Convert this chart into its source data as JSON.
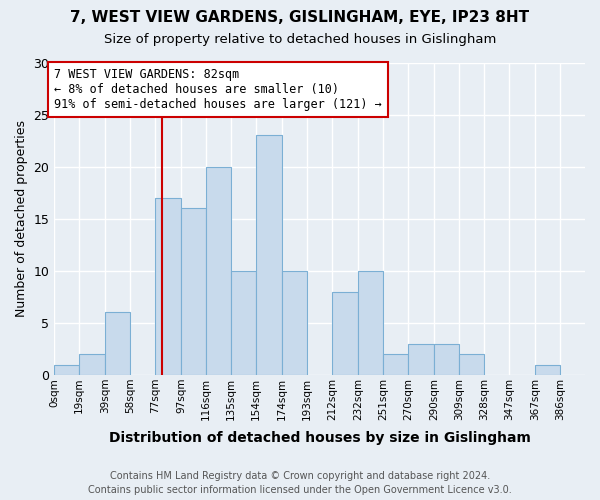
{
  "title": "7, WEST VIEW GARDENS, GISLINGHAM, EYE, IP23 8HT",
  "subtitle": "Size of property relative to detached houses in Gislingham",
  "xlabel": "Distribution of detached houses by size in Gislingham",
  "ylabel": "Number of detached properties",
  "bin_labels": [
    "0sqm",
    "19sqm",
    "39sqm",
    "58sqm",
    "77sqm",
    "97sqm",
    "116sqm",
    "135sqm",
    "154sqm",
    "174sqm",
    "193sqm",
    "212sqm",
    "232sqm",
    "251sqm",
    "270sqm",
    "290sqm",
    "309sqm",
    "328sqm",
    "347sqm",
    "367sqm",
    "386sqm"
  ],
  "bin_edges": [
    0,
    19,
    39,
    58,
    77,
    97,
    116,
    135,
    154,
    174,
    193,
    212,
    232,
    251,
    270,
    290,
    309,
    328,
    347,
    367,
    386,
    405
  ],
  "bar_values": [
    1,
    2,
    6,
    0,
    17,
    16,
    20,
    10,
    23,
    10,
    0,
    8,
    10,
    2,
    3,
    3,
    2,
    0,
    0,
    1,
    0
  ],
  "bar_color": "#c8daec",
  "bar_edge_color": "#7bafd4",
  "vline_x": 82,
  "vline_color": "#cc0000",
  "annotation_text": "7 WEST VIEW GARDENS: 82sqm\n← 8% of detached houses are smaller (10)\n91% of semi-detached houses are larger (121) →",
  "annotation_box_color": "white",
  "annotation_box_edge": "#cc0000",
  "ylim": [
    0,
    30
  ],
  "yticks": [
    0,
    5,
    10,
    15,
    20,
    25,
    30
  ],
  "footer": "Contains HM Land Registry data © Crown copyright and database right 2024.\nContains public sector information licensed under the Open Government Licence v3.0.",
  "bg_color": "#e8eef4",
  "plot_bg_color": "#e8eef4",
  "grid_color": "white"
}
